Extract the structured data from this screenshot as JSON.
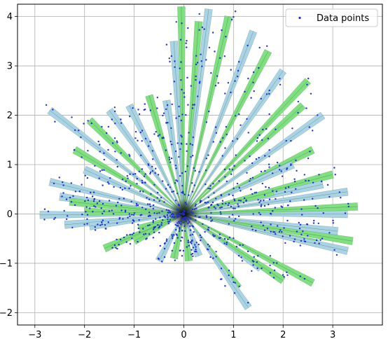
{
  "chart_data": {
    "type": "scatter",
    "title": "",
    "xlabel": "",
    "ylabel": "",
    "xlim": [
      -3.35,
      4.0
    ],
    "ylim": [
      -2.25,
      4.25
    ],
    "grid": true,
    "x_ticks": [
      -3,
      -2,
      -1,
      0,
      1,
      2,
      3
    ],
    "y_ticks": [
      -2,
      -1,
      0,
      1,
      2,
      3,
      4
    ],
    "x_tick_labels": [
      "−3",
      "−2",
      "−1",
      "0",
      "1",
      "2",
      "3"
    ],
    "y_tick_labels": [
      "−2",
      "−1",
      "0",
      "1",
      "2",
      "3",
      "4"
    ],
    "legend": {
      "position": "top-right",
      "entries": [
        "Data points"
      ]
    },
    "colors": {
      "points": "#1f2fd8",
      "ray_blue": "#a9d4e6",
      "ray_green": "#7fe07f",
      "ray_edge": "#5b7f6a",
      "ray_core": "#2f5f3f"
    },
    "rays": [
      {
        "x": -2.9,
        "y": -0.02,
        "c": "blue"
      },
      {
        "x": -2.4,
        "y": -0.22,
        "c": "blue"
      },
      {
        "x": -1.6,
        "y": -0.7,
        "c": "green"
      },
      {
        "x": -1.0,
        "y": -0.55,
        "c": "green"
      },
      {
        "x": -0.5,
        "y": -0.95,
        "c": "blue"
      },
      {
        "x": -0.2,
        "y": -0.9,
        "c": "green"
      },
      {
        "x": 0.1,
        "y": -0.95,
        "c": "green"
      },
      {
        "x": 0.3,
        "y": -0.85,
        "c": "blue"
      },
      {
        "x": 1.1,
        "y": -1.5,
        "c": "green"
      },
      {
        "x": 1.3,
        "y": -1.9,
        "c": "blue"
      },
      {
        "x": 1.55,
        "y": -1.1,
        "c": "blue"
      },
      {
        "x": 2.0,
        "y": -1.35,
        "c": "green"
      },
      {
        "x": 2.6,
        "y": -1.4,
        "c": "green"
      },
      {
        "x": 2.7,
        "y": -0.6,
        "c": "green"
      },
      {
        "x": 3.3,
        "y": -0.75,
        "c": "blue"
      },
      {
        "x": 3.4,
        "y": -0.55,
        "c": "green"
      },
      {
        "x": 3.1,
        "y": -0.35,
        "c": "blue"
      },
      {
        "x": 3.3,
        "y": 0.0,
        "c": "blue"
      },
      {
        "x": 3.5,
        "y": 0.15,
        "c": "green"
      },
      {
        "x": 3.3,
        "y": 0.45,
        "c": "blue"
      },
      {
        "x": 3.0,
        "y": 0.8,
        "c": "green"
      },
      {
        "x": 2.8,
        "y": 0.6,
        "c": "blue"
      },
      {
        "x": 2.6,
        "y": 1.3,
        "c": "green"
      },
      {
        "x": 2.2,
        "y": 1.0,
        "c": "blue"
      },
      {
        "x": 2.8,
        "y": 2.0,
        "c": "blue"
      },
      {
        "x": 2.4,
        "y": 2.2,
        "c": "green"
      },
      {
        "x": 2.5,
        "y": 2.7,
        "c": "green"
      },
      {
        "x": 2.0,
        "y": 2.9,
        "c": "blue"
      },
      {
        "x": 1.7,
        "y": 3.3,
        "c": "green"
      },
      {
        "x": 1.4,
        "y": 3.7,
        "c": "blue"
      },
      {
        "x": 0.9,
        "y": 4.0,
        "c": "green"
      },
      {
        "x": 0.5,
        "y": 4.15,
        "c": "blue"
      },
      {
        "x": 0.3,
        "y": 3.9,
        "c": "green"
      },
      {
        "x": -0.05,
        "y": 4.2,
        "c": "green"
      },
      {
        "x": -0.2,
        "y": 3.5,
        "c": "blue"
      },
      {
        "x": -0.35,
        "y": 2.3,
        "c": "blue"
      },
      {
        "x": -0.7,
        "y": 2.4,
        "c": "green"
      },
      {
        "x": -1.1,
        "y": 2.2,
        "c": "blue"
      },
      {
        "x": -1.5,
        "y": 2.1,
        "c": "blue"
      },
      {
        "x": -1.9,
        "y": 1.9,
        "c": "green"
      },
      {
        "x": -2.7,
        "y": 2.1,
        "c": "blue"
      },
      {
        "x": -2.2,
        "y": 1.3,
        "c": "green"
      },
      {
        "x": -2.0,
        "y": 0.9,
        "c": "blue"
      },
      {
        "x": -2.7,
        "y": 0.65,
        "c": "blue"
      },
      {
        "x": -2.5,
        "y": 0.35,
        "c": "blue"
      },
      {
        "x": -2.3,
        "y": 0.25,
        "c": "green"
      },
      {
        "x": -2.0,
        "y": 0.05,
        "c": "green"
      },
      {
        "x": -1.9,
        "y": -0.25,
        "c": "blue"
      },
      {
        "x": -0.9,
        "y": -0.3,
        "c": "green"
      },
      {
        "x": 1.8,
        "y": 0.45,
        "c": "green"
      }
    ]
  }
}
